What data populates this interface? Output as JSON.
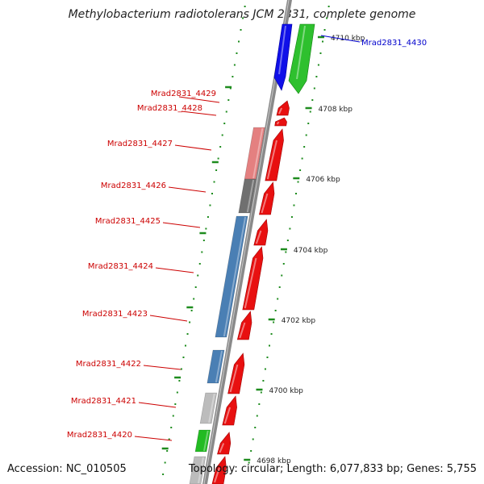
{
  "title": "Methylobacterium radiotolerans JCM 2831, complete genome",
  "footer": {
    "accession": "Accession: NC_010505",
    "topology": "Topology: circular; Length: 6,077,833 bp; Genes: 5,755"
  },
  "colors": {
    "forward_gene": "#e81010",
    "forward_gene_top": "#ff4a4a",
    "label_red": "#cc0000",
    "label_blue": "#0000cc",
    "backbone": "#8a8a8a",
    "tick": "#1e8c1e",
    "blue_gene": "#1010e8",
    "green_gene": "#2ec02e",
    "steel_gene": "#4a7fb4",
    "pink_gene": "#e48080",
    "dark_gene": "#707070",
    "light_gene": "#bcbcbc",
    "lime_gene": "#22bb22"
  },
  "scale_labels": [
    {
      "kbp": 4710,
      "text": "4710 kbp"
    },
    {
      "kbp": 4708,
      "text": "4708 kbp"
    },
    {
      "kbp": 4706,
      "text": "4706 kbp"
    },
    {
      "kbp": 4704,
      "text": "4704 kbp"
    },
    {
      "kbp": 4702,
      "text": "4702 kbp"
    },
    {
      "kbp": 4700,
      "text": "4700 kbp"
    },
    {
      "kbp": 4698,
      "text": "4698 kbp"
    }
  ],
  "genes": [
    {
      "name": "Mrad2831_4430",
      "label_color": "blue"
    },
    {
      "name": "Mrad2831_4429",
      "label_color": "red"
    },
    {
      "name": "Mrad2831_4428",
      "label_color": "red"
    },
    {
      "name": "Mrad2831_4427",
      "label_color": "red"
    },
    {
      "name": "Mrad2831_4426",
      "label_color": "red"
    },
    {
      "name": "Mrad2831_4425",
      "label_color": "red"
    },
    {
      "name": "Mrad2831_4424",
      "label_color": "red"
    },
    {
      "name": "Mrad2831_4423",
      "label_color": "red"
    },
    {
      "name": "Mrad2831_4422",
      "label_color": "red"
    },
    {
      "name": "Mrad2831_4421",
      "label_color": "red"
    },
    {
      "name": "Mrad2831_4420",
      "label_color": "red"
    }
  ]
}
